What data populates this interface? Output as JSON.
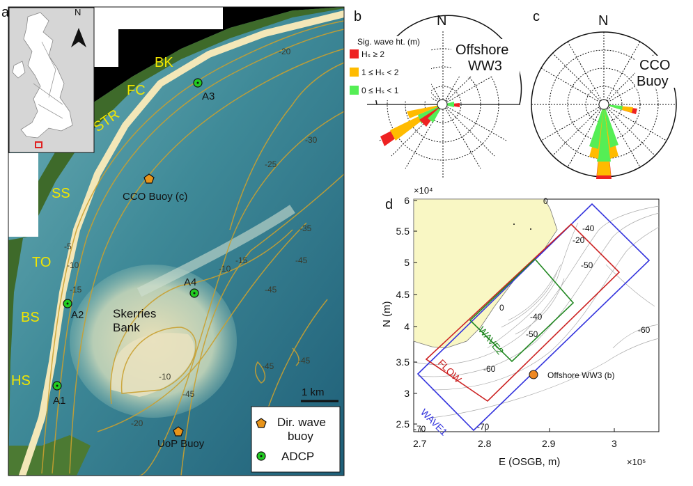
{
  "panel_a": {
    "label": "a",
    "inset_north": "N",
    "place_labels": [
      "BK",
      "FC",
      "STR",
      "SS",
      "TO",
      "BS",
      "HS"
    ],
    "sites": [
      {
        "id": "A3",
        "label": "A3"
      },
      {
        "id": "A4",
        "label": "A4"
      },
      {
        "id": "A2",
        "label": "A2"
      },
      {
        "id": "A1",
        "label": "A1"
      }
    ],
    "buoys": [
      {
        "id": "cco",
        "label": "CCO Buoy (c)"
      },
      {
        "id": "uop",
        "label": "UoP Buoy"
      }
    ],
    "bank_label_1": "Skerries",
    "bank_label_2": "Bank",
    "contours": [
      "-20",
      "-30",
      "-25",
      "-35",
      "-45",
      "-45",
      "-45",
      "-10",
      "-15",
      "-5",
      "-10",
      "-15",
      "-10",
      "-45",
      "-20",
      "-45"
    ],
    "scale_label": "1 km",
    "legend": {
      "wave_buoy_1": "Dir. wave",
      "wave_buoy_2": "buoy",
      "adcp": "ADCP"
    },
    "colors": {
      "place_text": "#f2e600",
      "buoy": "#e8941a",
      "adcp": "#22cc22",
      "contour": "#c9a030"
    }
  },
  "panel_b": {
    "label": "b",
    "north": "N",
    "title_1": "Offshore",
    "title_2": "WW3",
    "legend_title": "Sig. wave ht. (m)",
    "legend": [
      "Hₛ ≥ 2",
      "1 ≤ Hₛ < 2",
      "0 ≤ Hₛ < 1"
    ],
    "legend_colors": [
      "#ee2222",
      "#ffbb00",
      "#55ee55"
    ]
  },
  "panel_c": {
    "label": "c",
    "north": "N",
    "title_1": "CCO",
    "title_2": "Buoy"
  },
  "panel_d": {
    "label": "d",
    "x_multiplier": "×10⁵",
    "y_multiplier": "×10⁴",
    "xlabel": "E (OSGB, m)",
    "ylabel": "N (m)",
    "x_ticks": [
      "2.7",
      "2.8",
      "2.9",
      "3"
    ],
    "y_ticks": [
      "2.5",
      "3",
      "3.5",
      "4",
      "4.5",
      "5",
      "5.5",
      "6"
    ],
    "domains": [
      {
        "name": "WAVE1",
        "color": "#3333dd"
      },
      {
        "name": "FLOW",
        "color": "#cc2222"
      },
      {
        "name": "WAVE2",
        "color": "#228822"
      }
    ],
    "buoy_label": "Offshore WW3 (b)",
    "depth_labels": [
      "0",
      "-40",
      "-20",
      "-50",
      "0",
      "-40",
      "-50",
      "-60",
      "-60",
      "-70",
      "-70"
    ]
  }
}
